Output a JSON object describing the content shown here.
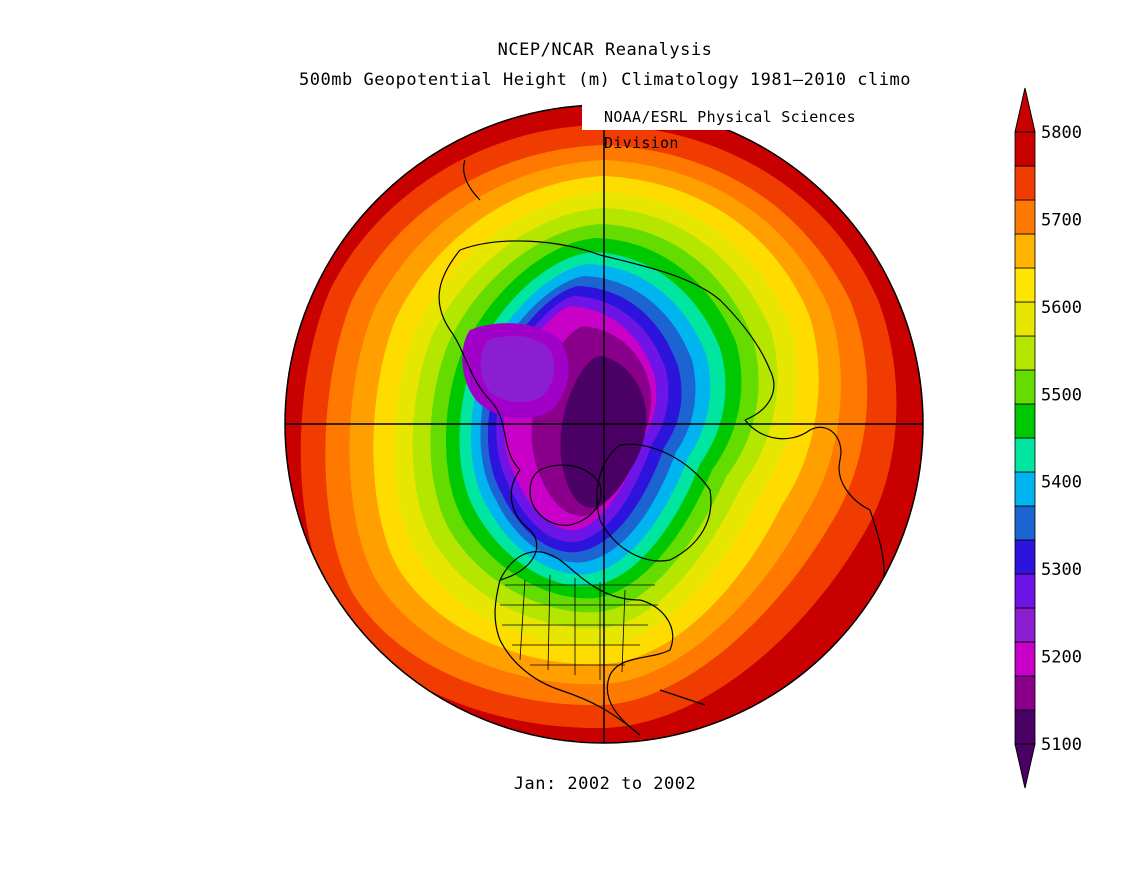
{
  "header": {
    "title": "NCEP/NCAR Reanalysis",
    "subtitle": "500mb Geopotential Height (m) Climatology 1981–2010 climo",
    "credit": "NOAA/ESRL Physical Sciences Division"
  },
  "footer": {
    "period": "Jan: 2002 to 2002"
  },
  "map": {
    "projection": "north-polar-stereographic",
    "variable": "500mb Geopotential Height",
    "units": "m",
    "levels": [
      5100,
      5150,
      5200,
      5250,
      5300,
      5350,
      5400,
      5450,
      5500,
      5550,
      5600,
      5650,
      5700,
      5750,
      5800
    ],
    "colors": [
      "#4b0066",
      "#8b008b",
      "#a000c8",
      "#c800c8",
      "#8c1ed2",
      "#6e14e6",
      "#2d14dc",
      "#1c64d2",
      "#00b4f0",
      "#00e6a0",
      "#00c800",
      "#64dc00",
      "#b4e600",
      "#e6e600",
      "#ffdc00",
      "#ffa000",
      "#ff7800",
      "#f03c00",
      "#c80000"
    ]
  },
  "colorbar": {
    "tick_labels": [
      "5800",
      "5700",
      "5600",
      "5500",
      "5400",
      "5300",
      "5200",
      "5100"
    ],
    "tick_values": [
      5800,
      5700,
      5600,
      5500,
      5400,
      5300,
      5200,
      5100
    ],
    "bands": [
      "#4b0066",
      "#8b008b",
      "#c800c8",
      "#8c1ed2",
      "#6e14e6",
      "#2d14dc",
      "#1c64d2",
      "#00b4f0",
      "#00e6a0",
      "#00c800",
      "#64dc00",
      "#b4e600",
      "#e6e600",
      "#ffe600",
      "#ffb400",
      "#ff7800",
      "#f03c00",
      "#c80000"
    ],
    "extends": "both"
  }
}
